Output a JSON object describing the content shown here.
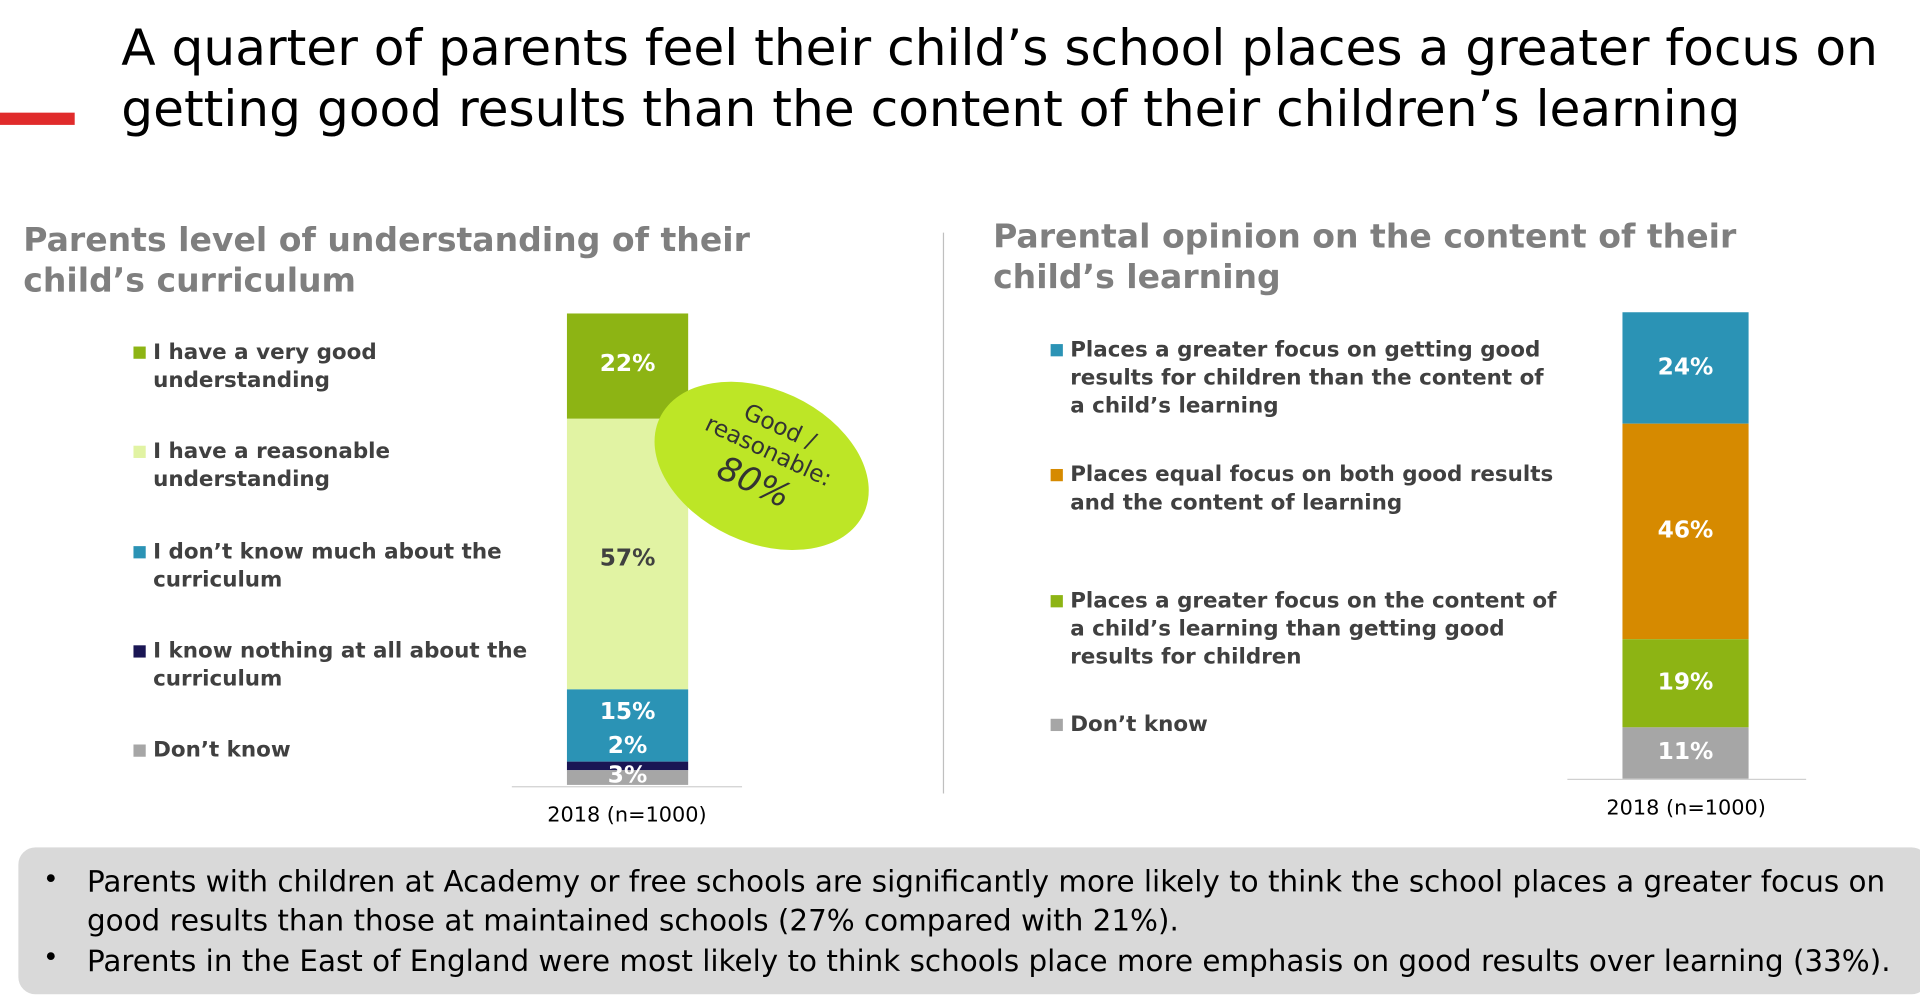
{
  "title": "A quarter of parents feel their child’s school places a greater focus on getting good results than the content of their children’s learning",
  "colors": {
    "accent": "#e02b2b",
    "very_good": "#8db414",
    "reasonable": "#e1f3a3",
    "dont_know_much": "#2b93b5",
    "nothing": "#1a1654",
    "dont_know": "#a6a6a6",
    "equal": "#d68a00",
    "callout": "#bde626"
  },
  "chart_data": [
    {
      "type": "bar",
      "stacked": true,
      "title": "Parents level of understanding of their child’s curriculum",
      "categories": [
        "2018 (n=1000)"
      ],
      "series": [
        {
          "name": "I have a very good understanding",
          "values": [
            22
          ],
          "label": "22%",
          "color": "#8db414"
        },
        {
          "name": "I have a reasonable understanding",
          "values": [
            57
          ],
          "label": "57%",
          "color": "#e1f3a3"
        },
        {
          "name": "I don’t know much about the curriculum",
          "values": [
            15
          ],
          "label": "15%",
          "color": "#2b93b5"
        },
        {
          "name": "I know nothing at all about the curriculum",
          "values": [
            2
          ],
          "label": "2%",
          "color": "#1a1654"
        },
        {
          "name": "Don’t know",
          "values": [
            3
          ],
          "label": "3%",
          "color": "#a6a6a6"
        }
      ],
      "callout": {
        "line1": "Good /",
        "line2": "reasonable:",
        "value": "80%"
      }
    },
    {
      "type": "bar",
      "stacked": true,
      "title": "Parental opinion on the content of their child’s learning",
      "categories": [
        "2018 (n=1000)"
      ],
      "series": [
        {
          "name": "Places a greater focus on getting good results for children than the content of a child’s learning",
          "values": [
            24
          ],
          "label": "24%",
          "color": "#2b93b5"
        },
        {
          "name": "Places equal focus on both good results and the content of learning",
          "values": [
            46
          ],
          "label": "46%",
          "color": "#d68a00"
        },
        {
          "name": "Places a greater focus on the content of a child’s learning than getting good results for children",
          "values": [
            19
          ],
          "label": "19%",
          "color": "#8db414"
        },
        {
          "name": "Don’t know",
          "values": [
            11
          ],
          "label": "11%",
          "color": "#a6a6a6"
        }
      ]
    }
  ],
  "notes": [
    "Parents with children at Academy or free schools are significantly more likely to think the school places a greater focus on good results than those at maintained schools (27% compared with 21%).",
    "Parents in the East of England were most likely to think schools place more emphasis on good results over learning (33%)."
  ]
}
